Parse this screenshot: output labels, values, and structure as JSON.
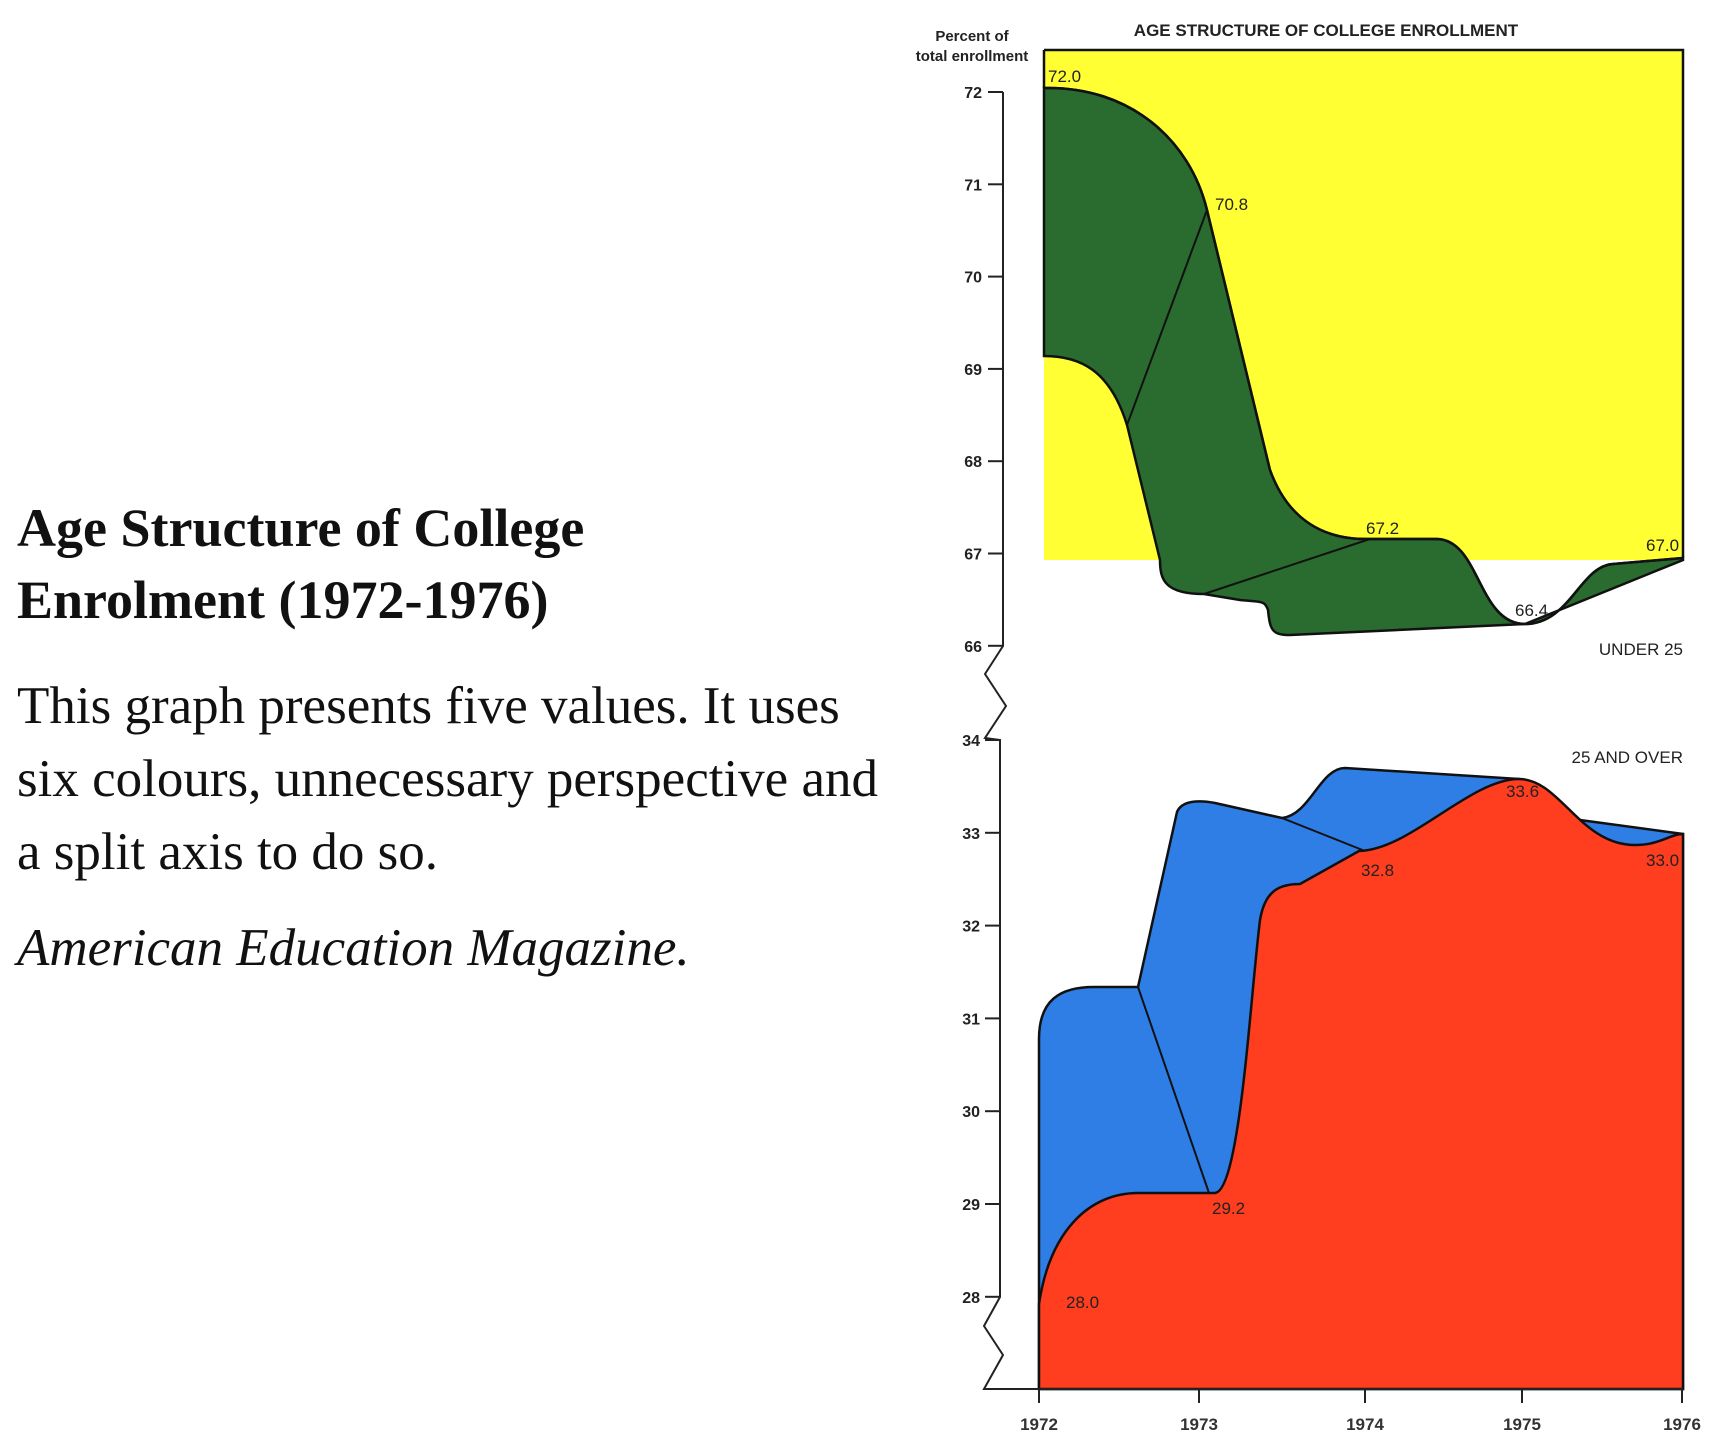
{
  "text": {
    "title": "Age Structure of College Enrolment (1972-1976)",
    "body": "This graph presents five values. It uses six colours, unnecessary perspective and a split axis to do so.",
    "source": "American Education Magazine."
  },
  "chart_data": {
    "type": "area",
    "title": "AGE STRUCTURE OF COLLEGE ENROLLMENT",
    "ylabel_line1": "Percent of",
    "ylabel_line2": "total enrollment",
    "x": [
      "1972",
      "1973",
      "1974",
      "1975",
      "1976"
    ],
    "series": [
      {
        "name": "UNDER 25",
        "values": [
          72.0,
          70.8,
          67.2,
          66.4,
          67.0
        ],
        "labels": [
          "72.0",
          "70.8",
          "67.2",
          "66.4",
          "67.0"
        ],
        "colors": {
          "top": "#ffff33",
          "side": "#2a6b30"
        }
      },
      {
        "name": "25 AND OVER",
        "values": [
          28.0,
          29.2,
          32.8,
          33.6,
          33.0
        ],
        "labels": [
          "28.0",
          "29.2",
          "32.8",
          "33.6",
          "33.0"
        ],
        "colors": {
          "top": "#ff3d1f",
          "side": "#2e7ee6"
        }
      }
    ],
    "yticks_upper": [
      "72",
      "71",
      "70",
      "69",
      "68",
      "67",
      "66"
    ],
    "yticks_lower": [
      "34",
      "33",
      "32",
      "31",
      "30",
      "29",
      "28"
    ],
    "ylim_upper": [
      66,
      72
    ],
    "ylim_lower": [
      28,
      34
    ],
    "split_axis": true
  }
}
